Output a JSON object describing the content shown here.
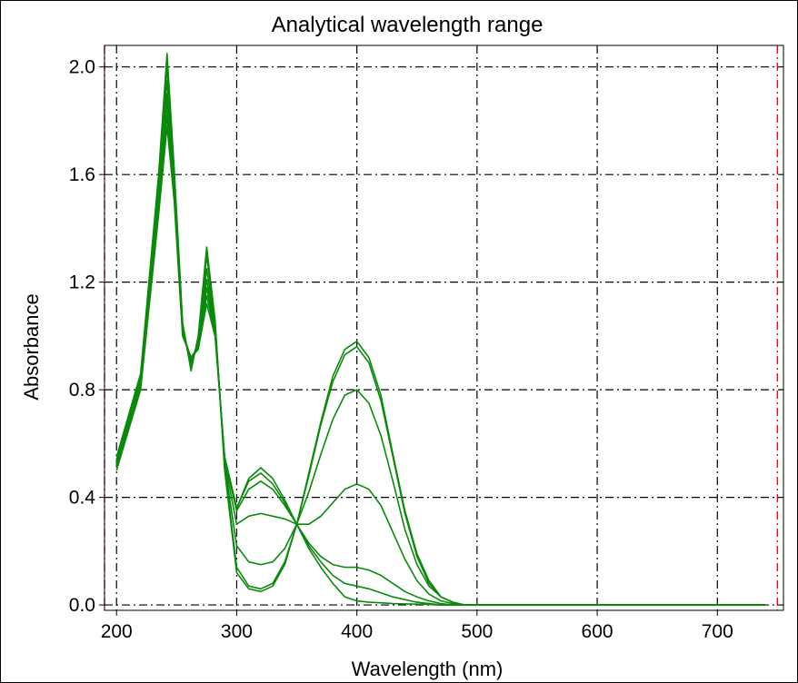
{
  "chart_data": {
    "type": "line",
    "title": "Analytical wavelength range",
    "xlabel": "Wavelength (nm)",
    "ylabel": "Absorbance",
    "xlim": [
      190,
      755
    ],
    "ylim": [
      -0.02,
      2.08
    ],
    "x_ticks": [
      200,
      300,
      400,
      500,
      600,
      700
    ],
    "y_ticks": [
      0.0,
      0.4,
      0.8,
      1.2,
      1.6,
      2.0
    ],
    "x_tick_labels": [
      "200",
      "300",
      "400",
      "500",
      "600",
      "700"
    ],
    "y_tick_labels": [
      "0.0",
      "0.4",
      "0.8",
      "1.2",
      "1.6",
      "2.0"
    ],
    "grid": true,
    "analytical_range_markers": [
      190,
      750
    ],
    "isosbestic_point": {
      "x": 350,
      "y": 0.3
    },
    "colors": {
      "series": "#0a8a0a",
      "grid": "#000000",
      "range_marker": "#ff0000"
    },
    "series": [
      {
        "x": [
          200,
          220,
          235,
          242,
          248,
          255,
          262,
          268,
          275,
          282,
          290,
          300,
          310,
          320,
          330,
          340,
          350,
          360,
          370,
          380,
          390,
          400,
          410,
          420,
          430,
          440,
          450,
          460,
          470,
          480,
          490,
          500,
          550,
          600,
          650,
          700,
          740
        ],
        "values": [
          0.5,
          0.8,
          1.45,
          1.78,
          1.5,
          1.0,
          0.92,
          0.95,
          1.12,
          1.0,
          0.55,
          0.36,
          0.47,
          0.51,
          0.47,
          0.39,
          0.3,
          0.21,
          0.14,
          0.08,
          0.03,
          0.015,
          0.01,
          0.008,
          0.005,
          0.004,
          0.003,
          0.002,
          0.0,
          0.0,
          0.0,
          0.0,
          0.0,
          0.0,
          0.0,
          0.0,
          0.0
        ]
      },
      {
        "x": [
          200,
          220,
          235,
          242,
          248,
          255,
          262,
          268,
          275,
          282,
          290,
          300,
          310,
          320,
          330,
          340,
          350,
          360,
          370,
          380,
          390,
          400,
          410,
          420,
          430,
          440,
          450,
          460,
          470,
          480,
          490,
          500,
          550,
          600,
          650,
          700,
          740
        ],
        "values": [
          0.51,
          0.81,
          1.48,
          1.82,
          1.52,
          1.01,
          0.92,
          0.96,
          1.15,
          1.01,
          0.55,
          0.36,
          0.46,
          0.49,
          0.45,
          0.38,
          0.3,
          0.22,
          0.16,
          0.11,
          0.08,
          0.07,
          0.06,
          0.045,
          0.03,
          0.02,
          0.01,
          0.005,
          0.0,
          0.0,
          0.0,
          0.0,
          0.0,
          0.0,
          0.0,
          0.0,
          0.0
        ]
      },
      {
        "x": [
          200,
          220,
          235,
          242,
          248,
          255,
          262,
          268,
          275,
          282,
          290,
          300,
          310,
          320,
          330,
          340,
          350,
          360,
          370,
          380,
          390,
          400,
          410,
          420,
          430,
          440,
          450,
          460,
          470,
          480,
          490,
          500,
          550,
          600,
          650,
          700,
          740
        ],
        "values": [
          0.52,
          0.82,
          1.5,
          1.86,
          1.54,
          1.02,
          0.91,
          0.96,
          1.18,
          1.02,
          0.54,
          0.35,
          0.43,
          0.46,
          0.43,
          0.37,
          0.3,
          0.23,
          0.18,
          0.15,
          0.14,
          0.14,
          0.13,
          0.11,
          0.08,
          0.05,
          0.03,
          0.015,
          0.005,
          0.0,
          0.0,
          0.0,
          0.0,
          0.0,
          0.0,
          0.0,
          0.0
        ]
      },
      {
        "x": [
          200,
          220,
          235,
          242,
          248,
          255,
          262,
          268,
          275,
          282,
          290,
          300,
          310,
          320,
          330,
          340,
          350,
          360,
          370,
          380,
          390,
          400,
          410,
          420,
          430,
          440,
          450,
          460,
          470,
          480,
          490,
          500,
          550,
          600,
          650,
          700,
          740
        ],
        "values": [
          0.52,
          0.83,
          1.52,
          1.9,
          1.56,
          1.02,
          0.9,
          0.97,
          1.21,
          1.03,
          0.53,
          0.3,
          0.33,
          0.34,
          0.33,
          0.32,
          0.3,
          0.3,
          0.33,
          0.38,
          0.43,
          0.45,
          0.43,
          0.37,
          0.27,
          0.17,
          0.09,
          0.04,
          0.015,
          0.005,
          0.0,
          0.0,
          0.0,
          0.0,
          0.0,
          0.0,
          0.0
        ]
      },
      {
        "x": [
          200,
          220,
          235,
          242,
          248,
          255,
          262,
          268,
          275,
          282,
          290,
          300,
          310,
          320,
          330,
          340,
          350,
          360,
          370,
          380,
          390,
          400,
          410,
          420,
          430,
          440,
          450,
          460,
          470,
          480,
          490,
          500,
          550,
          600,
          650,
          700,
          740
        ],
        "values": [
          0.53,
          0.84,
          1.55,
          1.95,
          1.58,
          1.03,
          0.89,
          0.98,
          1.25,
          1.04,
          0.52,
          0.22,
          0.16,
          0.15,
          0.16,
          0.21,
          0.3,
          0.42,
          0.56,
          0.69,
          0.78,
          0.8,
          0.75,
          0.63,
          0.46,
          0.28,
          0.15,
          0.07,
          0.03,
          0.01,
          0.0,
          0.0,
          0.0,
          0.0,
          0.0,
          0.0,
          0.0
        ]
      },
      {
        "x": [
          200,
          220,
          235,
          242,
          248,
          255,
          262,
          268,
          275,
          282,
          290,
          300,
          310,
          320,
          330,
          340,
          350,
          360,
          370,
          380,
          390,
          400,
          410,
          420,
          430,
          440,
          450,
          460,
          470,
          480,
          490,
          500,
          550,
          600,
          650,
          700,
          740
        ],
        "values": [
          0.54,
          0.85,
          1.58,
          2.0,
          1.6,
          1.04,
          0.88,
          0.99,
          1.3,
          1.05,
          0.51,
          0.14,
          0.07,
          0.06,
          0.08,
          0.16,
          0.3,
          0.48,
          0.67,
          0.83,
          0.93,
          0.96,
          0.9,
          0.76,
          0.55,
          0.34,
          0.18,
          0.08,
          0.03,
          0.01,
          0.0,
          0.0,
          0.0,
          0.0,
          0.0,
          0.0,
          0.0
        ]
      },
      {
        "x": [
          200,
          220,
          235,
          242,
          248,
          255,
          262,
          268,
          275,
          282,
          290,
          300,
          310,
          320,
          330,
          340,
          350,
          360,
          370,
          380,
          390,
          400,
          410,
          420,
          430,
          440,
          450,
          460,
          470,
          480,
          490,
          500,
          550,
          600,
          650,
          700,
          740
        ],
        "values": [
          0.55,
          0.86,
          1.6,
          2.05,
          1.62,
          1.05,
          0.87,
          1.0,
          1.33,
          1.06,
          0.5,
          0.12,
          0.06,
          0.05,
          0.07,
          0.15,
          0.3,
          0.49,
          0.68,
          0.85,
          0.95,
          0.98,
          0.92,
          0.78,
          0.56,
          0.35,
          0.19,
          0.09,
          0.03,
          0.01,
          0.0,
          0.0,
          0.0,
          0.0,
          0.0,
          0.0,
          0.0
        ]
      }
    ]
  }
}
